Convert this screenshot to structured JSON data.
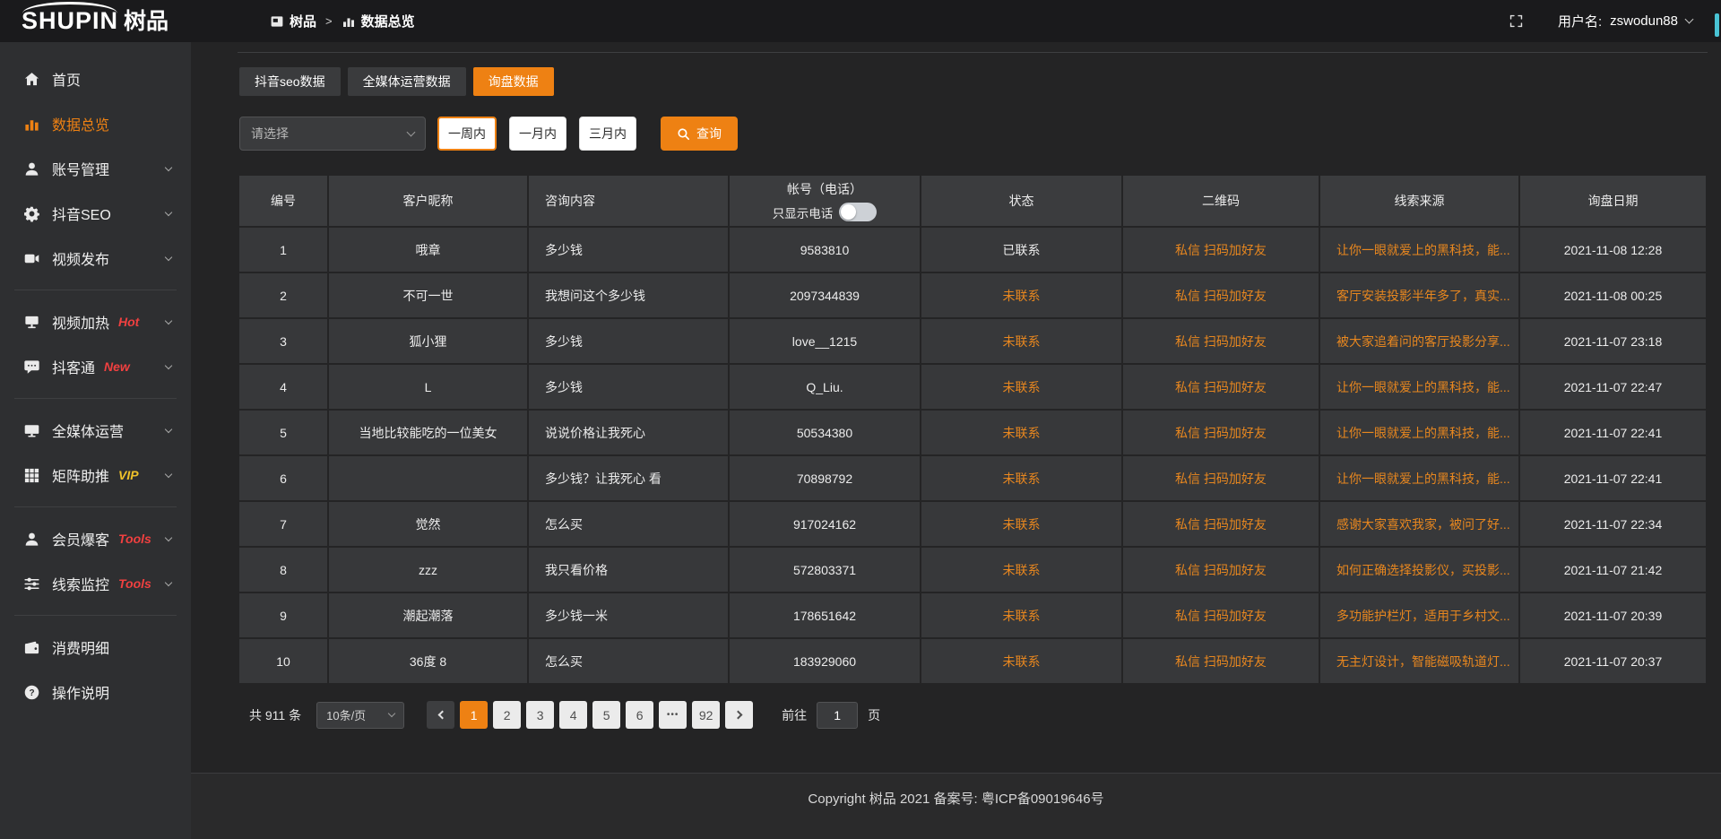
{
  "topbar": {
    "logo_text": "SHUPIN",
    "logo_cn": "树品",
    "breadcrumb": {
      "separator": ">",
      "items": [
        {
          "label": "树品",
          "icon": "board-icon"
        },
        {
          "label": "数据总览",
          "icon": "bars-icon"
        }
      ]
    },
    "user_label": "用户名:",
    "username": "zswodun88"
  },
  "sidebar": {
    "items": [
      {
        "label": "首页",
        "icon": "home-icon"
      },
      {
        "label": "数据总览",
        "icon": "chart-icon",
        "active": true
      },
      {
        "label": "账号管理",
        "icon": "user-icon",
        "chevron": true
      },
      {
        "label": "抖音SEO",
        "icon": "gear-icon",
        "chevron": true
      },
      {
        "label": "视频发布",
        "icon": "video-icon",
        "chevron": true,
        "divider_after": true
      },
      {
        "label": "视频加热",
        "icon": "tv-icon",
        "badge": "Hot",
        "badge_color": "red",
        "chevron": true
      },
      {
        "label": "抖客通",
        "icon": "chat-icon",
        "badge": "New",
        "badge_color": "red",
        "chevron": true,
        "divider_after": true
      },
      {
        "label": "全媒体运营",
        "icon": "monitor-icon",
        "chevron": true
      },
      {
        "label": "矩阵助推",
        "icon": "grid-icon",
        "badge": "VIP",
        "badge_color": "yellow",
        "chevron": true,
        "divider_after": true
      },
      {
        "label": "会员爆客",
        "icon": "member-icon",
        "badge": "Tools",
        "badge_color": "red",
        "chevron": true
      },
      {
        "label": "线索监控",
        "icon": "sliders-icon",
        "badge": "Tools",
        "badge_color": "red",
        "chevron": true,
        "divider_after": true
      },
      {
        "label": "消费明细",
        "icon": "wallet-icon"
      },
      {
        "label": "操作说明",
        "icon": "question-icon"
      }
    ]
  },
  "tabs": [
    {
      "label": "抖音seo数据"
    },
    {
      "label": "全媒体运营数据"
    },
    {
      "label": "询盘数据",
      "active": true
    }
  ],
  "filters": {
    "select_placeholder": "请选择",
    "range_buttons": [
      {
        "label": "一周内",
        "active": true
      },
      {
        "label": "一月内"
      },
      {
        "label": "三月内"
      }
    ],
    "query_label": "查询"
  },
  "table": {
    "col_id": "编号",
    "col_nickname": "客户昵称",
    "col_content": "咨询内容",
    "col_account": "帐号（电话）",
    "phone_toggle_label": "只显示电话",
    "col_status": "状态",
    "col_qrcode": "二维码",
    "col_source": "线索来源",
    "col_date": "询盘日期",
    "rows": [
      {
        "id": "1",
        "nickname": "哦章",
        "content": "多少钱",
        "account": "9583810",
        "status": "已联系",
        "pending": false,
        "qrcode": "私信 扫码加好友",
        "source": "让你一眼就爱上的黑科技，能...",
        "date": "2021-11-08 12:28"
      },
      {
        "id": "2",
        "nickname": "不可一世",
        "content": "我想问这个多少钱",
        "account": "2097344839",
        "status": "未联系",
        "pending": true,
        "qrcode": "私信 扫码加好友",
        "source": "客厅安装投影半年多了，真实...",
        "date": "2021-11-08 00:25"
      },
      {
        "id": "3",
        "nickname": "狐小狸",
        "content": "多少钱",
        "account": "love__1215",
        "status": "未联系",
        "pending": true,
        "qrcode": "私信 扫码加好友",
        "source": "被大家追着问的客厅投影分享...",
        "date": "2021-11-07 23:18"
      },
      {
        "id": "4",
        "nickname": "L",
        "content": "多少钱",
        "account": "Q_Liu.",
        "status": "未联系",
        "pending": true,
        "qrcode": "私信 扫码加好友",
        "source": "让你一眼就爱上的黑科技，能...",
        "date": "2021-11-07 22:47"
      },
      {
        "id": "5",
        "nickname": "当地比较能吃的一位美女",
        "content": "说说价格让我死心",
        "account": "50534380",
        "status": "未联系",
        "pending": true,
        "qrcode": "私信 扫码加好友",
        "source": "让你一眼就爱上的黑科技，能...",
        "date": "2021-11-07 22:41"
      },
      {
        "id": "6",
        "nickname": "",
        "content": "多少钱？让我死心 看",
        "account": "70898792",
        "status": "未联系",
        "pending": true,
        "qrcode": "私信 扫码加好友",
        "source": "让你一眼就爱上的黑科技，能...",
        "date": "2021-11-07 22:41"
      },
      {
        "id": "7",
        "nickname": "觉然",
        "content": "怎么买",
        "account": "917024162",
        "status": "未联系",
        "pending": true,
        "qrcode": "私信 扫码加好友",
        "source": "感谢大家喜欢我家，被问了好...",
        "date": "2021-11-07 22:34"
      },
      {
        "id": "8",
        "nickname": "zzz",
        "content": "我只看价格",
        "account": "572803371",
        "status": "未联系",
        "pending": true,
        "qrcode": "私信 扫码加好友",
        "source": "如何正确选择投影仪，买投影...",
        "date": "2021-11-07 21:42"
      },
      {
        "id": "9",
        "nickname": "潮起潮落",
        "content": "多少钱一米",
        "account": "178651642",
        "status": "未联系",
        "pending": true,
        "qrcode": "私信 扫码加好友",
        "source": "多功能护栏灯，适用于乡村文...",
        "date": "2021-11-07 20:39"
      },
      {
        "id": "10",
        "nickname": "36度 8",
        "content": "怎么买",
        "account": "183929060",
        "status": "未联系",
        "pending": true,
        "qrcode": "私信 扫码加好友",
        "source": "无主灯设计，智能磁吸轨道灯...",
        "date": "2021-11-07 20:37"
      }
    ]
  },
  "pagination": {
    "total_label": "共 911 条",
    "page_size_label": "10条/页",
    "pages": [
      {
        "label": "1",
        "active": true
      },
      {
        "label": "2"
      },
      {
        "label": "3"
      },
      {
        "label": "4"
      },
      {
        "label": "5"
      },
      {
        "label": "6"
      },
      {
        "label": "•••",
        "ellipsis": true
      },
      {
        "label": "92"
      }
    ],
    "goto_label": "前往",
    "goto_value": "1",
    "goto_unit": "页"
  },
  "footer": {
    "copyright": "Copyright 树品 2021 备案号: 粤ICP备09019646号"
  },
  "colors": {
    "accent_orange": "#ee8113",
    "link_orange": "#e8871f",
    "badge_red": "#f04040",
    "badge_vip_yellow": "#f0c22a",
    "sidebar_bg": "#2e2f31",
    "cell_bg": "#37383a",
    "topbar_bg": "#1a1a1c"
  }
}
